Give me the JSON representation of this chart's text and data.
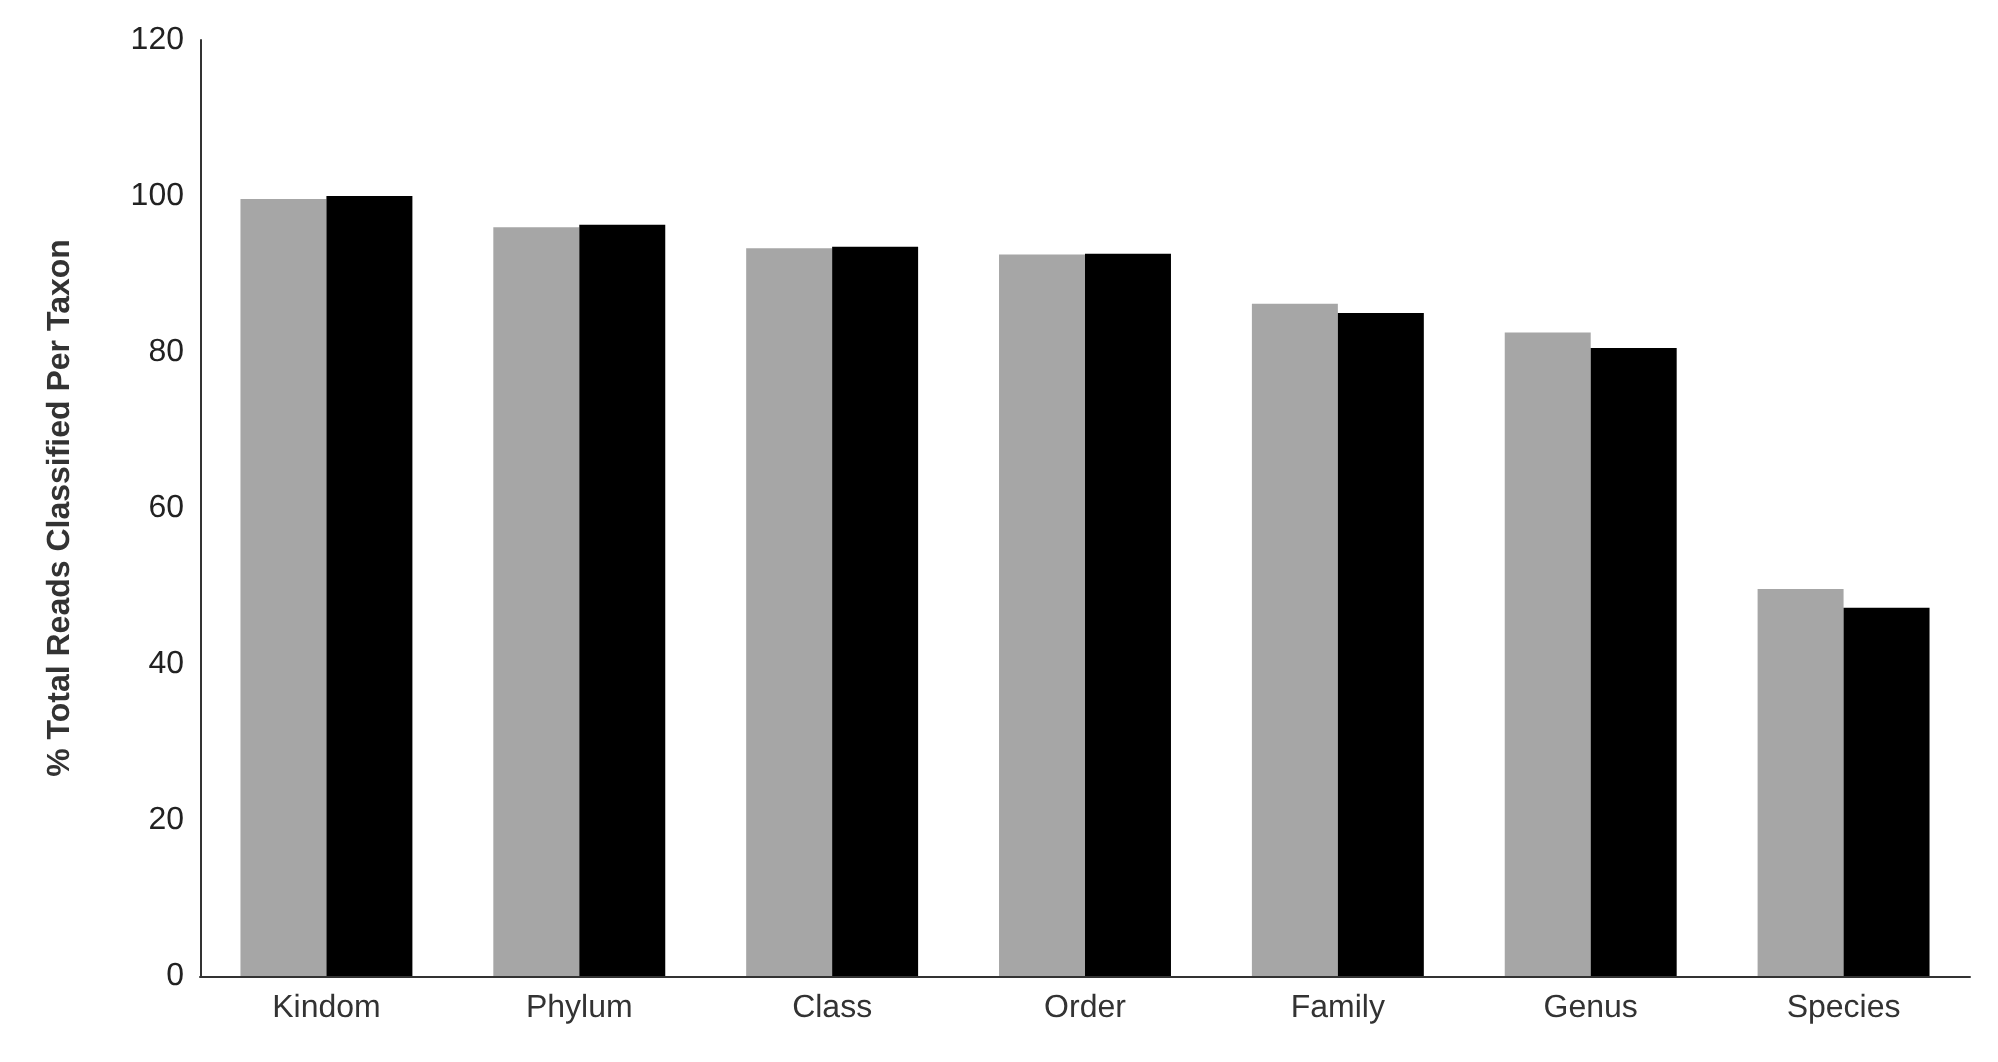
{
  "chart_data": {
    "type": "bar",
    "ylabel": "% Total Reads Classified Per Taxon",
    "categories": [
      "Kindom",
      "Phylum",
      "Class",
      "Order",
      "Family",
      "Genus",
      "Species"
    ],
    "series": [
      {
        "color": "#a6a6a6",
        "values": [
          99.6,
          96,
          93.3,
          92.5,
          86.2,
          82.5,
          49.6
        ]
      },
      {
        "color": "#000000",
        "values": [
          100,
          96.3,
          93.5,
          92.6,
          85,
          80.5,
          47.2
        ]
      }
    ],
    "ylim": [
      0,
      120
    ],
    "yticks": [
      0,
      20,
      40,
      60,
      80,
      100,
      120
    ]
  }
}
